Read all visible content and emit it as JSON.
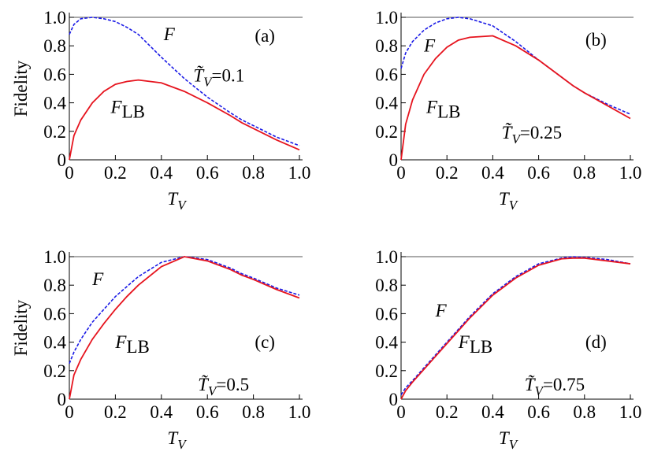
{
  "chart_data": [
    {
      "type": "line",
      "ylabel": "Fidelity",
      "xlabel": {
        "text": "T",
        "sub": "V"
      },
      "panel": "(a)",
      "param": {
        "text": "T̃",
        "sub": "V",
        "suffix": "=0.1"
      },
      "hline": 1,
      "xlim": [
        0,
        1
      ],
      "ylim": [
        0,
        1
      ],
      "xticks": [
        0,
        0.2,
        0.4,
        0.6,
        0.8,
        {
          "value": 1,
          "label": "1.0"
        }
      ],
      "yticks": [
        0,
        0.2,
        0.4,
        0.6,
        0.8,
        {
          "value": 1,
          "label": "1.0"
        }
      ],
      "x": [
        0,
        0.02,
        0.05,
        0.1,
        0.15,
        0.2,
        0.25,
        0.3,
        0.4,
        0.5,
        0.6,
        0.7,
        0.75,
        0.8,
        0.9,
        1.0
      ],
      "series": [
        {
          "name": "F",
          "color": "#1a1ae6",
          "dashed": true,
          "values": [
            0.88,
            0.95,
            0.99,
            1.0,
            0.99,
            0.97,
            0.93,
            0.88,
            0.72,
            0.57,
            0.44,
            0.33,
            0.28,
            0.24,
            0.16,
            0.1
          ]
        },
        {
          "name": "F",
          "sub": "LB",
          "color": "#e6141e",
          "dashed": false,
          "values": [
            0,
            0.17,
            0.28,
            0.4,
            0.48,
            0.53,
            0.55,
            0.56,
            0.54,
            0.48,
            0.4,
            0.31,
            0.26,
            0.22,
            0.14,
            0.07
          ]
        }
      ]
    },
    {
      "type": "line",
      "xlabel": {
        "text": "T",
        "sub": "V"
      },
      "panel": "(b)",
      "param": {
        "text": "T̃",
        "sub": "V",
        "suffix": "=0.25"
      },
      "hline": 1,
      "xlim": [
        0,
        1
      ],
      "ylim": [
        0,
        1
      ],
      "xticks": [
        0,
        0.2,
        0.4,
        0.6,
        0.8,
        {
          "value": 1,
          "label": "1.0"
        }
      ],
      "yticks": [
        0,
        0.2,
        0.4,
        0.6,
        0.8,
        {
          "value": 1,
          "label": "1.0"
        }
      ],
      "x": [
        0,
        0.02,
        0.05,
        0.1,
        0.15,
        0.2,
        0.25,
        0.3,
        0.4,
        0.5,
        0.6,
        0.7,
        0.75,
        0.8,
        0.9,
        1.0
      ],
      "series": [
        {
          "name": "F",
          "color": "#1a1ae6",
          "dashed": true,
          "values": [
            0.64,
            0.75,
            0.83,
            0.91,
            0.96,
            0.99,
            1.0,
            0.99,
            0.94,
            0.83,
            0.7,
            0.58,
            0.52,
            0.47,
            0.39,
            0.32
          ]
        },
        {
          "name": "F",
          "sub": "LB",
          "color": "#e6141e",
          "dashed": false,
          "values": [
            0,
            0.25,
            0.42,
            0.6,
            0.71,
            0.79,
            0.84,
            0.86,
            0.87,
            0.8,
            0.7,
            0.58,
            0.52,
            0.47,
            0.38,
            0.29
          ]
        }
      ]
    },
    {
      "type": "line",
      "ylabel": "Fidelity",
      "xlabel": {
        "text": "T",
        "sub": "V"
      },
      "panel": "(c)",
      "param": {
        "text": "T̃",
        "sub": "V",
        "suffix": "=0.5"
      },
      "hline": 1,
      "xlim": [
        0,
        1
      ],
      "ylim": [
        0,
        1
      ],
      "xticks": [
        0,
        0.2,
        0.4,
        0.6,
        0.8,
        {
          "value": 1,
          "label": "1.0"
        }
      ],
      "yticks": [
        0,
        0.2,
        0.4,
        0.6,
        0.8,
        {
          "value": 1,
          "label": "1.0"
        }
      ],
      "x": [
        0,
        0.02,
        0.05,
        0.1,
        0.15,
        0.2,
        0.25,
        0.3,
        0.4,
        0.5,
        0.6,
        0.7,
        0.75,
        0.8,
        0.9,
        1.0
      ],
      "series": [
        {
          "name": "F",
          "color": "#1a1ae6",
          "dashed": true,
          "values": [
            0.25,
            0.33,
            0.42,
            0.54,
            0.63,
            0.72,
            0.79,
            0.86,
            0.96,
            1.0,
            0.98,
            0.92,
            0.88,
            0.85,
            0.78,
            0.73
          ]
        },
        {
          "name": "F",
          "sub": "LB",
          "color": "#e6141e",
          "dashed": false,
          "values": [
            0,
            0.17,
            0.28,
            0.42,
            0.53,
            0.63,
            0.72,
            0.8,
            0.93,
            1.0,
            0.97,
            0.91,
            0.87,
            0.84,
            0.77,
            0.71
          ]
        }
      ]
    },
    {
      "type": "line",
      "xlabel": {
        "text": "T",
        "sub": "V"
      },
      "panel": "(d)",
      "param": {
        "text": "T̃",
        "sub": "V",
        "suffix": "=0.75"
      },
      "hline": 1,
      "xlim": [
        0,
        1
      ],
      "ylim": [
        0,
        1
      ],
      "xticks": [
        0,
        0.2,
        0.4,
        0.6,
        0.8,
        {
          "value": 1,
          "label": "1.0"
        }
      ],
      "yticks": [
        0,
        0.2,
        0.4,
        0.6,
        0.8,
        {
          "value": 1,
          "label": "1.0"
        }
      ],
      "x": [
        0,
        0.02,
        0.05,
        0.1,
        0.15,
        0.2,
        0.25,
        0.3,
        0.4,
        0.5,
        0.6,
        0.7,
        0.75,
        0.8,
        0.9,
        1.0
      ],
      "series": [
        {
          "name": "F",
          "color": "#1a1ae6",
          "dashed": true,
          "values": [
            0.03,
            0.08,
            0.13,
            0.22,
            0.31,
            0.4,
            0.49,
            0.58,
            0.74,
            0.86,
            0.95,
            0.99,
            1.0,
            0.995,
            0.98,
            0.95
          ]
        },
        {
          "name": "F",
          "sub": "LB",
          "color": "#e6141e",
          "dashed": false,
          "values": [
            0,
            0.06,
            0.12,
            0.21,
            0.3,
            0.39,
            0.48,
            0.57,
            0.73,
            0.85,
            0.94,
            0.985,
            0.99,
            0.99,
            0.97,
            0.95
          ]
        }
      ]
    }
  ]
}
